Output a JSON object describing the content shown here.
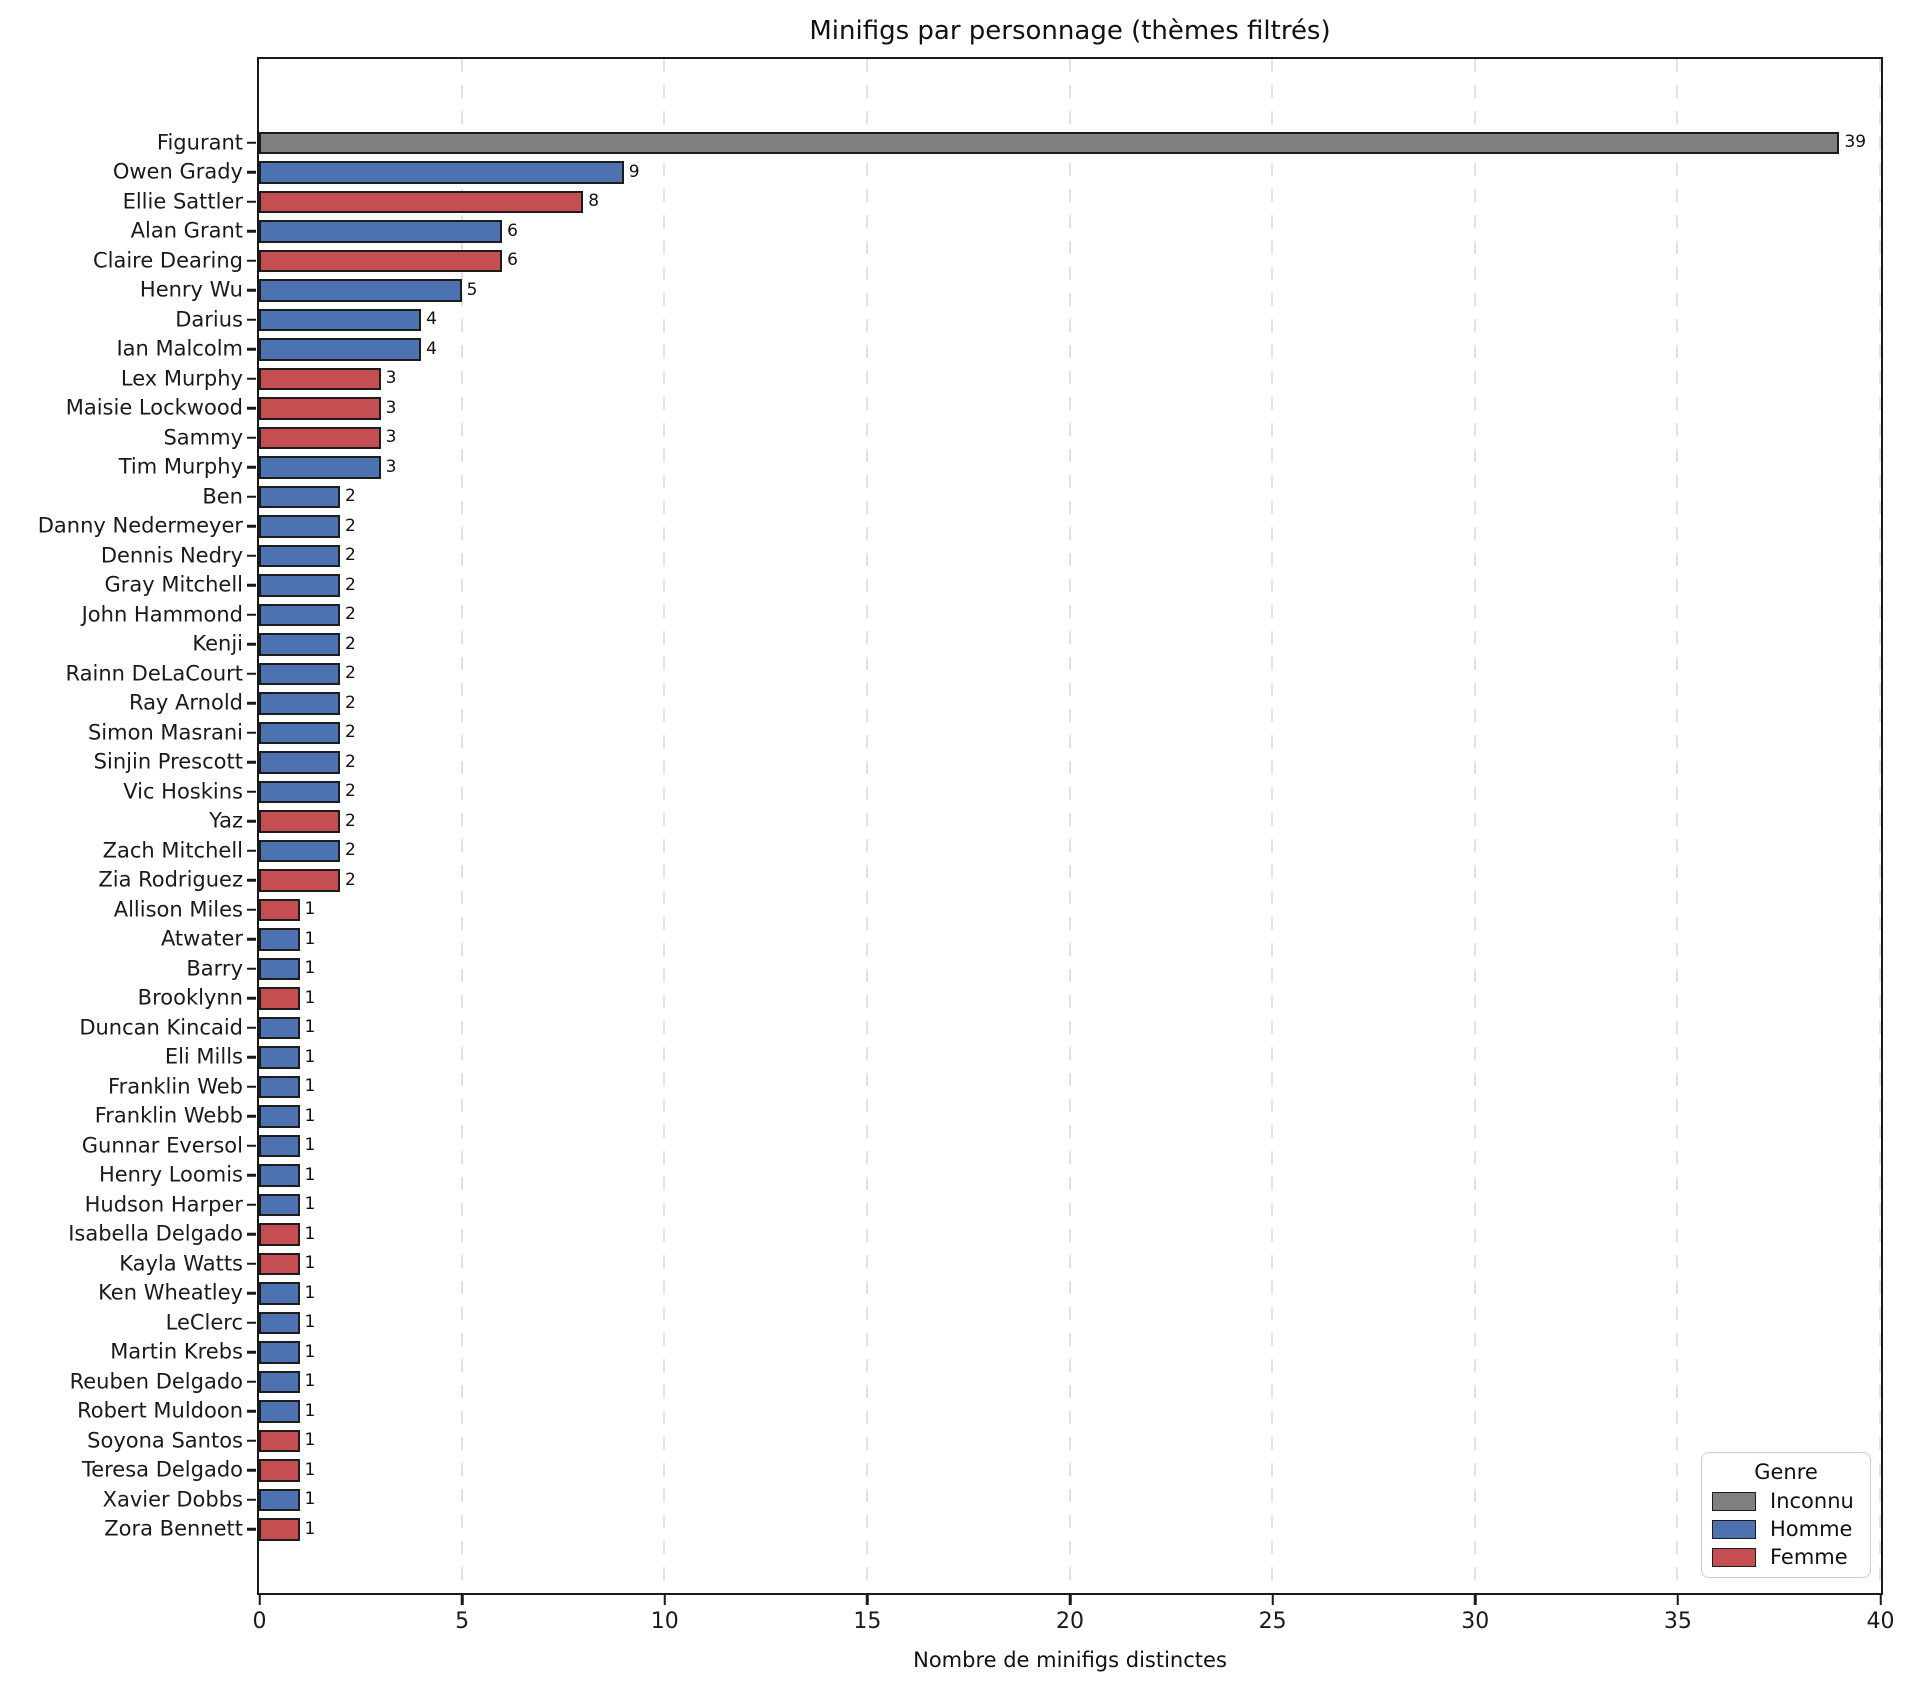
{
  "genre_colors": {
    "inconnu": "#7f7f7f",
    "homme": "#4c72b0",
    "femme": "#c44e52"
  },
  "chart_data": {
    "type": "bar",
    "orientation": "horizontal",
    "title": "Minifigs par personnage (thèmes filtrés)",
    "xlabel": "Nombre de minifigs distinctes",
    "xlim": [
      0,
      40
    ],
    "xticks": [
      0,
      5,
      10,
      15,
      20,
      25,
      30,
      35,
      40
    ],
    "grid": "vertical-dashed",
    "legend": {
      "title": "Genre",
      "position": "lower right",
      "entries": [
        {
          "label": "Inconnu",
          "genre": "inconnu"
        },
        {
          "label": "Homme",
          "genre": "homme"
        },
        {
          "label": "Femme",
          "genre": "femme"
        }
      ]
    },
    "bars": [
      {
        "label": "Figurant",
        "value": 39,
        "genre": "inconnu"
      },
      {
        "label": "Owen Grady",
        "value": 9,
        "genre": "homme"
      },
      {
        "label": "Ellie Sattler",
        "value": 8,
        "genre": "femme"
      },
      {
        "label": "Alan Grant",
        "value": 6,
        "genre": "homme"
      },
      {
        "label": "Claire Dearing",
        "value": 6,
        "genre": "femme"
      },
      {
        "label": "Henry Wu",
        "value": 5,
        "genre": "homme"
      },
      {
        "label": "Darius",
        "value": 4,
        "genre": "homme"
      },
      {
        "label": "Ian Malcolm",
        "value": 4,
        "genre": "homme"
      },
      {
        "label": "Lex Murphy",
        "value": 3,
        "genre": "femme"
      },
      {
        "label": "Maisie Lockwood",
        "value": 3,
        "genre": "femme"
      },
      {
        "label": "Sammy",
        "value": 3,
        "genre": "femme"
      },
      {
        "label": "Tim Murphy",
        "value": 3,
        "genre": "homme"
      },
      {
        "label": "Ben",
        "value": 2,
        "genre": "homme"
      },
      {
        "label": "Danny Nedermeyer",
        "value": 2,
        "genre": "homme"
      },
      {
        "label": "Dennis Nedry",
        "value": 2,
        "genre": "homme"
      },
      {
        "label": "Gray Mitchell",
        "value": 2,
        "genre": "homme"
      },
      {
        "label": "John Hammond",
        "value": 2,
        "genre": "homme"
      },
      {
        "label": "Kenji",
        "value": 2,
        "genre": "homme"
      },
      {
        "label": "Rainn DeLaCourt",
        "value": 2,
        "genre": "homme"
      },
      {
        "label": "Ray Arnold",
        "value": 2,
        "genre": "homme"
      },
      {
        "label": "Simon Masrani",
        "value": 2,
        "genre": "homme"
      },
      {
        "label": "Sinjin Prescott",
        "value": 2,
        "genre": "homme"
      },
      {
        "label": "Vic Hoskins",
        "value": 2,
        "genre": "homme"
      },
      {
        "label": "Yaz",
        "value": 2,
        "genre": "femme"
      },
      {
        "label": "Zach Mitchell",
        "value": 2,
        "genre": "homme"
      },
      {
        "label": "Zia Rodriguez",
        "value": 2,
        "genre": "femme"
      },
      {
        "label": "Allison Miles",
        "value": 1,
        "genre": "femme"
      },
      {
        "label": "Atwater",
        "value": 1,
        "genre": "homme"
      },
      {
        "label": "Barry",
        "value": 1,
        "genre": "homme"
      },
      {
        "label": "Brooklynn",
        "value": 1,
        "genre": "femme"
      },
      {
        "label": "Duncan Kincaid",
        "value": 1,
        "genre": "homme"
      },
      {
        "label": "Eli Mills",
        "value": 1,
        "genre": "homme"
      },
      {
        "label": "Franklin Web",
        "value": 1,
        "genre": "homme"
      },
      {
        "label": "Franklin Webb",
        "value": 1,
        "genre": "homme"
      },
      {
        "label": "Gunnar Eversol",
        "value": 1,
        "genre": "homme"
      },
      {
        "label": "Henry Loomis",
        "value": 1,
        "genre": "homme"
      },
      {
        "label": "Hudson Harper",
        "value": 1,
        "genre": "homme"
      },
      {
        "label": "Isabella Delgado",
        "value": 1,
        "genre": "femme"
      },
      {
        "label": "Kayla Watts",
        "value": 1,
        "genre": "femme"
      },
      {
        "label": "Ken Wheatley",
        "value": 1,
        "genre": "homme"
      },
      {
        "label": "LeClerc",
        "value": 1,
        "genre": "homme"
      },
      {
        "label": "Martin Krebs",
        "value": 1,
        "genre": "homme"
      },
      {
        "label": "Reuben Delgado",
        "value": 1,
        "genre": "homme"
      },
      {
        "label": "Robert Muldoon",
        "value": 1,
        "genre": "homme"
      },
      {
        "label": "Soyona Santos",
        "value": 1,
        "genre": "femme"
      },
      {
        "label": "Teresa Delgado",
        "value": 1,
        "genre": "femme"
      },
      {
        "label": "Xavier Dobbs",
        "value": 1,
        "genre": "homme"
      },
      {
        "label": "Zora Bennett",
        "value": 1,
        "genre": "femme"
      }
    ]
  }
}
